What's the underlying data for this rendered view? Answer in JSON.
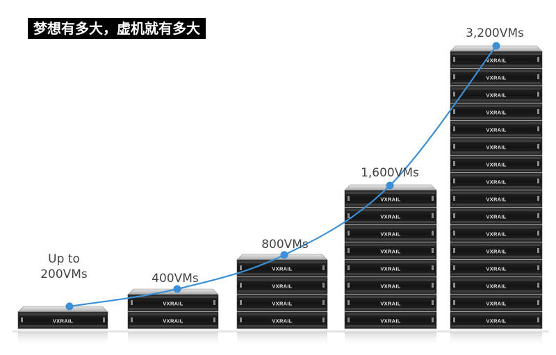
{
  "banner": {
    "title": "梦想有多大，虚机就有多大"
  },
  "colors": {
    "curve": "#3a8fd6",
    "server_body": "#1c1c1c",
    "server_top": "#cfcfcf",
    "floor": "#e4e4e4"
  },
  "chart_data": {
    "type": "line",
    "title": "梦想有多大，虚机就有多大",
    "xlabel": "",
    "ylabel": "",
    "grid": false,
    "legend": "none",
    "categories": [
      "Up to 200VMs",
      "400VMs",
      "800VMs",
      "1,600VMs",
      "3,200VMs"
    ],
    "series": [
      {
        "values": [
          200,
          400,
          800,
          1600,
          3200
        ]
      }
    ],
    "stack_sizes": [
      1,
      2,
      4,
      8,
      16
    ],
    "labels": [
      [
        "Up to",
        "200VMs"
      ],
      [
        "400VMs"
      ],
      [
        "800VMs"
      ],
      [
        "1,600VMs"
      ],
      [
        "3,200VMs"
      ]
    ],
    "brand_text": "VXRAIL"
  }
}
